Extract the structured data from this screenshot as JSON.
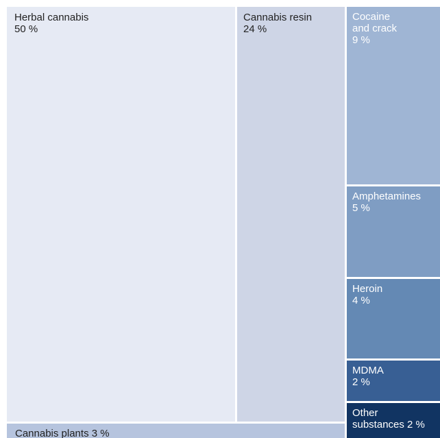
{
  "chart_data": {
    "type": "treemap",
    "legend": "none",
    "grid": false,
    "items": [
      {
        "name": "Herbal cannabis",
        "value": 50,
        "label_lines": [
          "Herbal cannabis",
          "50 %"
        ],
        "color": "#e6eaf4",
        "text_color": "#222222"
      },
      {
        "name": "Cannabis resin",
        "value": 24,
        "label_lines": [
          "Cannabis resin",
          "24 %"
        ],
        "color": "#ced5e6",
        "text_color": "#222222"
      },
      {
        "name": "Cocaine and crack",
        "value": 9,
        "label_lines": [
          "Cocaine",
          "and crack",
          "9 %"
        ],
        "color": "#9fb5d4",
        "text_color": "#ffffff"
      },
      {
        "name": "Amphetamines",
        "value": 5,
        "label_lines": [
          "Amphetamines",
          "5 %"
        ],
        "color": "#7f9dc3",
        "text_color": "#ffffff"
      },
      {
        "name": "Heroin",
        "value": 4,
        "label_lines": [
          "Heroin",
          "4 %"
        ],
        "color": "#6489b4",
        "text_color": "#ffffff"
      },
      {
        "name": "MDMA",
        "value": 2,
        "label_lines": [
          "MDMA",
          "2 %"
        ],
        "color": "#385f94",
        "text_color": "#ffffff"
      },
      {
        "name": "Other substances",
        "value": 2,
        "label_lines": [
          "Other",
          "substances 2 %"
        ],
        "color": "#113462",
        "text_color": "#ffffff"
      },
      {
        "name": "Cannabis plants",
        "value": 3,
        "label_lines": [
          "Cannabis plants 3 %"
        ],
        "color": "#b6c4de",
        "text_color": "#222222"
      }
    ]
  }
}
